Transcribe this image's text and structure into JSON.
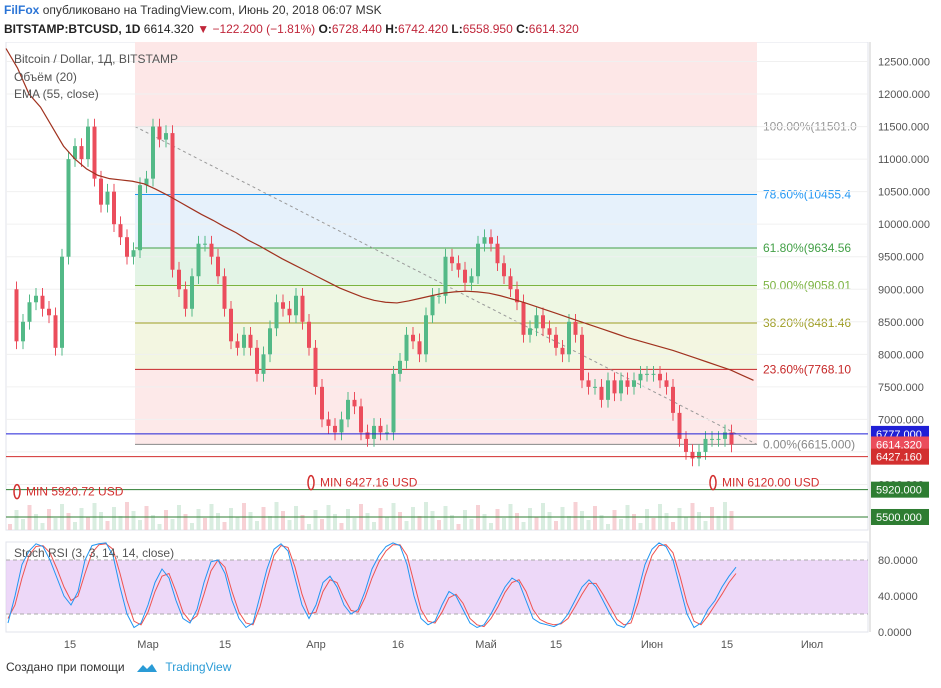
{
  "header": {
    "author": "FilFox",
    "published_text": "опубликовано на TradingView.com, Июнь 20, 2018 06:07 MSK",
    "symbol": "BITSTAMP:BTCUSD, 1D",
    "last": "6614.320",
    "change": "−122.200 (−1.81%)",
    "o_label": "O:",
    "o_value": "6728.440",
    "h_label": "H:",
    "h_value": "6742.420",
    "l_label": "L:",
    "l_value": "6558.950",
    "c_label": "C:",
    "c_value": "6614.320"
  },
  "legend": {
    "title": "Bitcoin / Dollar, 1Д, BITSTAMP",
    "volume": "Объём (20)",
    "ema": "EMA (55, close)"
  },
  "footer": {
    "created_with": "Создано при помощи",
    "brand": "TradingView"
  },
  "colors": {
    "up": "#53b987",
    "down": "#eb4d5c",
    "ema": "#a0321f",
    "stoch_k": "#2196f3",
    "stoch_d": "#ef5350",
    "stoch_band": "#e6c8f5"
  },
  "chart_data": {
    "type": "candlestick",
    "price_axis": {
      "range": [
        5500,
        12500
      ],
      "ticks": [
        "12500.000",
        "12000.000",
        "11500.000",
        "11000.000",
        "10500.000",
        "10000.000",
        "9500.000",
        "9000.000",
        "8500.000",
        "8000.000",
        "7500.000",
        "7000.000",
        "6500.000",
        "6000.000"
      ]
    },
    "x_axis": {
      "labels": [
        "15",
        "Мар",
        "15",
        "Апр",
        "16",
        "Май",
        "15",
        "Июн",
        "15",
        "Июл"
      ]
    },
    "fibonacci": [
      {
        "label": "100.00%(11501.0",
        "value": 11501,
        "color": "#999999"
      },
      {
        "label": "78.60%(10455.4",
        "value": 10455.4,
        "color": "#2196f3"
      },
      {
        "label": "61.80%(9634.56",
        "value": 9634.56,
        "color": "#43a047"
      },
      {
        "label": "50.00%(9058.01",
        "value": 9058.01,
        "color": "#7cb342"
      },
      {
        "label": "38.20%(8481.46",
        "value": 8481.46,
        "color": "#9e9d24"
      },
      {
        "label": "23.60%(7768.10",
        "value": 7768.1,
        "color": "#c62828"
      },
      {
        "label": "0.00%(6615.000)",
        "value": 6615,
        "color": "#888888"
      }
    ],
    "price_labels": [
      {
        "text": "6777.000",
        "value": 6777,
        "color": "#1f1fd6"
      },
      {
        "text": "6614.320",
        "value": 6614.32,
        "color": "#eb4d5c"
      },
      {
        "text": "6427.160",
        "value": 6427.16,
        "color": "#d32f2f"
      },
      {
        "text": "5920.000",
        "value": 5920,
        "color": "#2e7d32"
      },
      {
        "text": "5500.000",
        "value": 5500,
        "color": "#2e7d32"
      }
    ],
    "horizontal_levels": [
      {
        "value": 6777,
        "color": "#1f1fd6"
      },
      {
        "value": 6427.16,
        "color": "#d32f2f"
      },
      {
        "value": 5920,
        "color": "#2e7d32"
      },
      {
        "value": 5500,
        "color": "#2e7d32"
      }
    ],
    "annotations": [
      {
        "text": "MIN 5920.72 USD",
        "color": "#d32f2f"
      },
      {
        "text": "MIN 6427.16 USD",
        "color": "#d32f2f"
      },
      {
        "text": "MIN 6120.00 USD",
        "color": "#d32f2f"
      }
    ],
    "closes": [
      9000,
      8200,
      8500,
      8800,
      8900,
      8700,
      8600,
      8100,
      9500,
      11000,
      11200,
      11000,
      11500,
      10700,
      10300,
      10500,
      10000,
      9800,
      9500,
      9600,
      10600,
      10700,
      11500,
      11300,
      11400,
      9300,
      9000,
      8700,
      9200,
      9700,
      9700,
      9500,
      9200,
      8700,
      8200,
      8100,
      8300,
      8100,
      7700,
      8000,
      8400,
      8800,
      8700,
      8600,
      8900,
      8500,
      8100,
      7500,
      7000,
      6900,
      6800,
      7000,
      7300,
      7200,
      6800,
      6700,
      6900,
      6800,
      6800,
      7700,
      7900,
      8300,
      8200,
      8000,
      8600,
      8900,
      8900,
      9500,
      9400,
      9300,
      9100,
      9200,
      9700,
      9800,
      9700,
      9400,
      9200,
      9000,
      8800,
      8300,
      8400,
      8600,
      8400,
      8300,
      8100,
      8000,
      8500,
      8300,
      7600,
      7500,
      7500,
      7300,
      7600,
      7400,
      7600,
      7500,
      7600,
      7700,
      7700,
      7700,
      7600,
      7500,
      7100,
      6700,
      6500,
      6400,
      6500,
      6700,
      6700,
      6700,
      6800,
      6614
    ],
    "ema": [
      12700,
      12400,
      12000,
      11800,
      11500,
      11200,
      11000,
      10850,
      10750,
      10700,
      10680,
      10660,
      10620,
      10540,
      10450,
      10350,
      10250,
      10150,
      10060,
      9960,
      9870,
      9760,
      9670,
      9570,
      9470,
      9380,
      9290,
      9200,
      9110,
      9020,
      8950,
      8880,
      8830,
      8800,
      8790,
      8820,
      8860,
      8900,
      8940,
      8960,
      8970,
      8960,
      8940,
      8900,
      8850,
      8800,
      8740,
      8680,
      8620,
      8560,
      8500,
      8440,
      8380,
      8320,
      8260,
      8210,
      8160,
      8110,
      8060,
      8000,
      7940,
      7880,
      7820,
      7760,
      7680,
      7600
    ],
    "stoch_rsi": {
      "label": "Stoch RSI (3, 3, 14, 14, close)",
      "range": [
        0,
        100
      ],
      "band": [
        20,
        80
      ],
      "ticks": [
        "80.0000",
        "40.0000",
        "0.0000"
      ],
      "k": [
        10,
        40,
        75,
        90,
        98,
        95,
        80,
        60,
        40,
        30,
        45,
        80,
        96,
        98,
        99,
        85,
        50,
        20,
        5,
        10,
        30,
        55,
        70,
        60,
        35,
        15,
        10,
        25,
        55,
        78,
        80,
        65,
        35,
        15,
        5,
        10,
        40,
        70,
        92,
        98,
        90,
        60,
        30,
        15,
        30,
        55,
        62,
        50,
        30,
        20,
        25,
        45,
        70,
        85,
        95,
        99,
        96,
        75,
        40,
        15,
        8,
        12,
        30,
        45,
        40,
        25,
        10,
        5,
        8,
        20,
        35,
        50,
        60,
        55,
        35,
        15,
        10,
        8,
        6,
        10,
        20,
        35,
        50,
        58,
        50,
        35,
        20,
        8,
        5,
        15,
        45,
        75,
        92,
        99,
        95,
        80,
        50,
        20,
        5,
        10,
        25,
        35,
        50,
        62,
        72
      ],
      "d": [
        15,
        30,
        60,
        85,
        95,
        96,
        88,
        70,
        50,
        35,
        40,
        65,
        88,
        97,
        98,
        92,
        65,
        35,
        12,
        8,
        22,
        45,
        62,
        65,
        45,
        22,
        12,
        18,
        42,
        68,
        80,
        72,
        45,
        22,
        10,
        8,
        28,
        58,
        85,
        96,
        94,
        72,
        42,
        20,
        22,
        45,
        58,
        55,
        38,
        24,
        22,
        38,
        60,
        78,
        90,
        97,
        97,
        85,
        55,
        25,
        12,
        10,
        22,
        38,
        42,
        32,
        15,
        8,
        6,
        15,
        28,
        44,
        55,
        58,
        45,
        25,
        14,
        10,
        8,
        9,
        15,
        28,
        42,
        54,
        54,
        42,
        28,
        14,
        8,
        10,
        32,
        62,
        85,
        96,
        97,
        88,
        62,
        32,
        12,
        8,
        18,
        30,
        42,
        55,
        65
      ]
    }
  }
}
